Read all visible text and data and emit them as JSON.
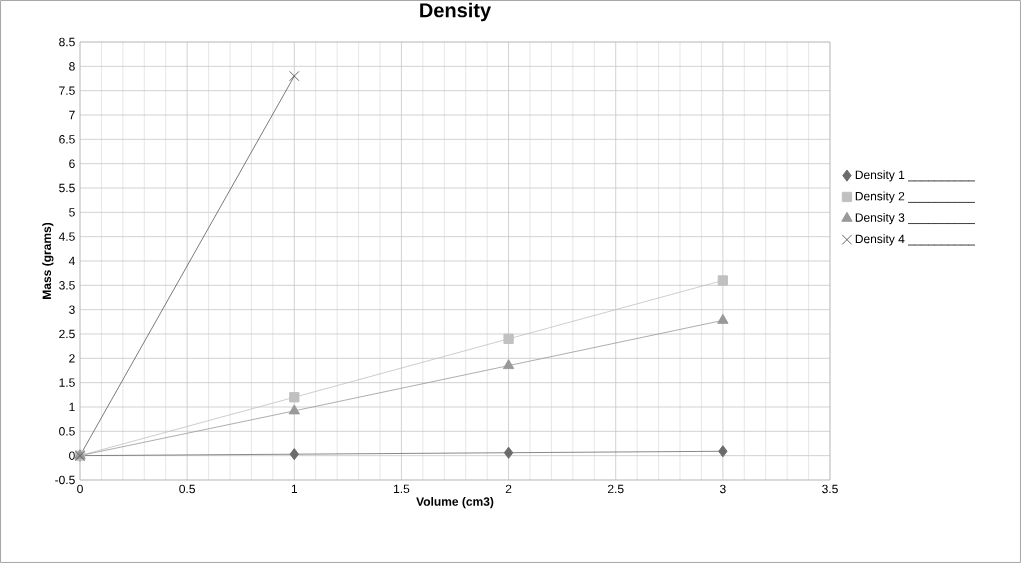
{
  "chart_data": {
    "type": "line",
    "title": "Density",
    "xlabel": "Volume (cm3)",
    "ylabel": "Mass (grams)",
    "x": [
      0,
      1,
      2,
      3
    ],
    "series": [
      {
        "name": "Density 1 __________",
        "color": "#6b6b6b",
        "marker": "diamond",
        "values": [
          0,
          0.03,
          0.06,
          0.09
        ]
      },
      {
        "name": "Density 2 __________",
        "color": "#c0c0c0",
        "marker": "square",
        "values": [
          0,
          1.2,
          2.4,
          3.6
        ]
      },
      {
        "name": "Density 3 __________",
        "color": "#999999",
        "marker": "triangle",
        "values": [
          0,
          0.92,
          1.85,
          2.78
        ]
      },
      {
        "name": "Density 4 __________",
        "color": "#595959",
        "marker": "cross",
        "x": [
          0,
          1
        ],
        "values": [
          0,
          7.8
        ]
      }
    ],
    "xlim": [
      0,
      3.5
    ],
    "xticks": [
      0,
      0.5,
      1,
      1.5,
      2,
      2.5,
      3,
      3.5
    ],
    "ylim": [
      -0.5,
      8.5
    ],
    "yticks": [
      -0.5,
      0,
      0.5,
      1,
      1.5,
      2,
      2.5,
      3,
      3.5,
      4,
      4.5,
      5,
      5.5,
      6,
      6.5,
      7,
      7.5,
      8,
      8.5
    ],
    "grid": true,
    "legend": "right",
    "line_style": "solid"
  }
}
